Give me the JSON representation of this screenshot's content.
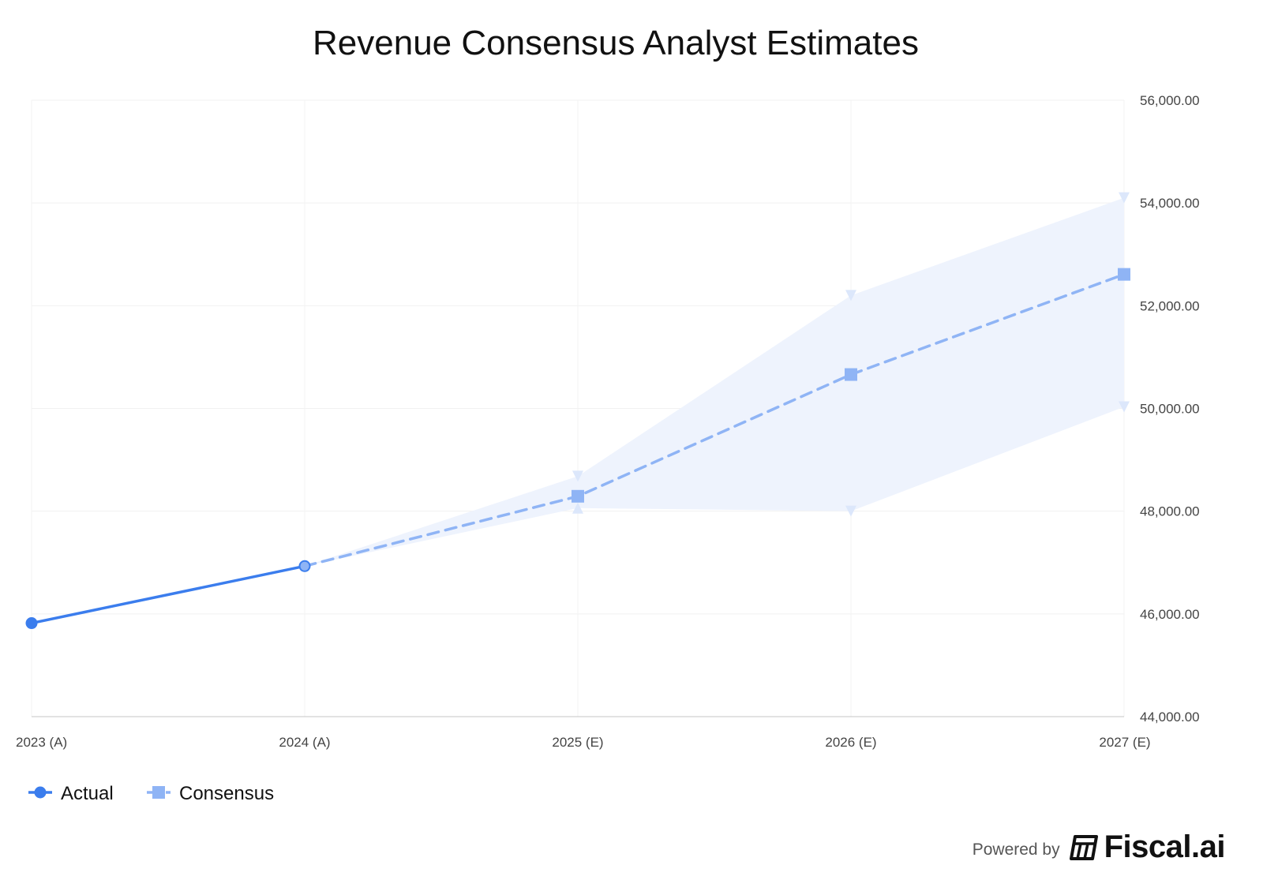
{
  "chart_data": {
    "type": "line",
    "title": "Revenue Consensus Analyst Estimates",
    "categories": [
      "2023 (A)",
      "2024 (A)",
      "2025 (E)",
      "2026 (E)",
      "2027 (E)"
    ],
    "series": [
      {
        "name": "Actual",
        "values": [
          45820,
          46930,
          null,
          null,
          null
        ],
        "color": "#3b7ded",
        "marker": "circle",
        "style": "solid"
      },
      {
        "name": "Consensus",
        "values": [
          null,
          46930,
          48290,
          50660,
          52610
        ],
        "color": "#8fb4f5",
        "marker": "square",
        "style": "dashed"
      }
    ],
    "range": {
      "name": "Estimate Range",
      "high": [
        null,
        46930,
        48680,
        52200,
        54100
      ],
      "low": [
        null,
        46930,
        48060,
        48000,
        50030
      ],
      "color": "#eef3fd"
    },
    "y_axis": {
      "position": "right",
      "ylim": [
        44000,
        56000
      ],
      "ticks": [
        44000,
        46000,
        48000,
        50000,
        52000,
        54000,
        56000
      ],
      "tick_labels": [
        "44,000.00",
        "46,000.00",
        "48,000.00",
        "50,000.00",
        "52,000.00",
        "54,000.00",
        "56,000.00"
      ]
    },
    "grid": true,
    "legend_position": "bottom-left"
  },
  "footer": {
    "powered_by": "Powered by",
    "brand": "Fiscal.ai"
  }
}
